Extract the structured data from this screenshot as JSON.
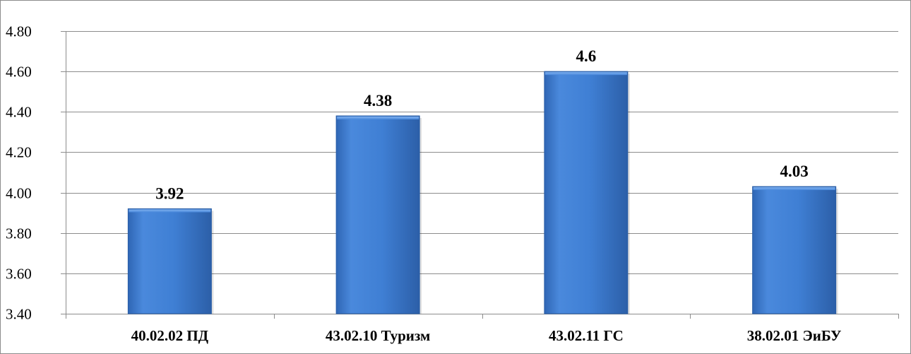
{
  "chart_data": {
    "type": "bar",
    "title": "",
    "xlabel": "",
    "ylabel": "",
    "categories": [
      "40.02.02 ПД",
      "43.02.10 Туризм",
      "43.02.11 ГС",
      "38.02.01 ЭиБУ"
    ],
    "values": [
      3.92,
      4.38,
      4.6,
      4.03
    ],
    "data_labels": [
      "3.92",
      "4.38",
      "4.6",
      "4.03"
    ],
    "ylim": [
      3.4,
      4.8
    ],
    "yticks": [
      3.4,
      3.6,
      3.8,
      4.0,
      4.2,
      4.4,
      4.6,
      4.8
    ],
    "ytick_labels": [
      "3.40",
      "3.60",
      "3.80",
      "4.00",
      "4.20",
      "4.40",
      "4.60",
      "4.80"
    ],
    "grid": true,
    "legend": "none",
    "colors": {
      "bar_light": "#5b95e0",
      "bar_main": "#3d7bd0",
      "bar_dark": "#2a5ea6",
      "gridline": "#8c8c8c",
      "axis": "#8c8c8c"
    }
  }
}
